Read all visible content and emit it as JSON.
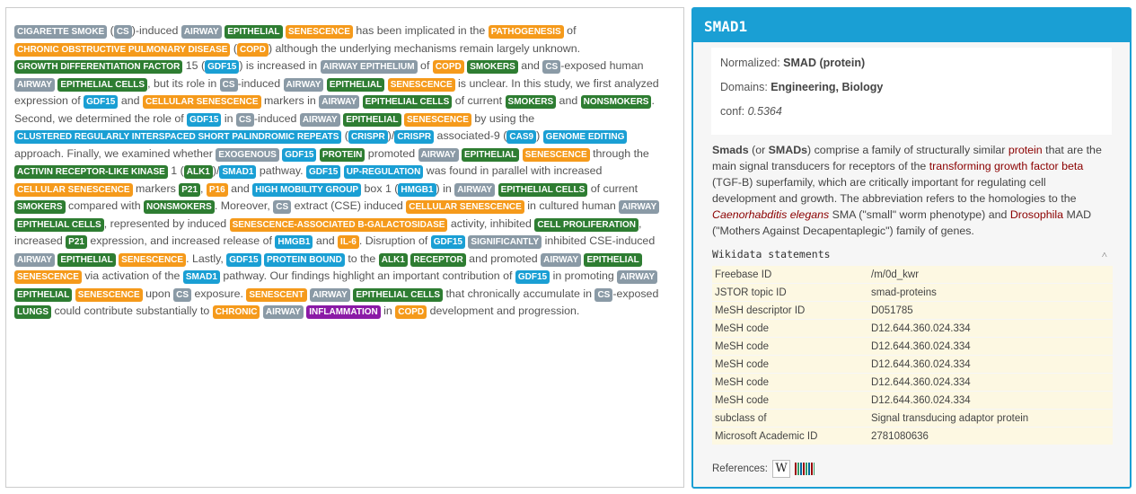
{
  "colors": {
    "grey": "#8a9aa6",
    "green": "#2e7d32",
    "orange": "#f59a1b",
    "blue": "#1a9fd4",
    "purple": "#8b1aa6"
  },
  "paragraph": [
    [
      "CIGARETTE SMOKE",
      "grey"
    ],
    [
      " (",
      null
    ],
    [
      "CS",
      "grey"
    ],
    [
      ")-induced ",
      null
    ],
    [
      "AIRWAY",
      "grey"
    ],
    [
      " ",
      null
    ],
    [
      "EPITHELIAL",
      "green"
    ],
    [
      " ",
      null
    ],
    [
      "SENESCENCE",
      "orange"
    ],
    [
      " has been implicated in the ",
      null
    ],
    [
      "PATHOGENESIS",
      "orange"
    ],
    [
      " of ",
      null
    ],
    [
      "CHRONIC OBSTRUCTIVE PULMONARY DISEASE",
      "orange"
    ],
    [
      " (",
      null
    ],
    [
      "COPD",
      "orange"
    ],
    [
      ") although the underlying mechanisms remain largely unknown. ",
      null
    ],
    [
      "GROWTH DIFFERENTIATION FACTOR",
      "green"
    ],
    [
      " 15 (",
      null
    ],
    [
      "GDF15",
      "blue"
    ],
    [
      ") is increased in ",
      null
    ],
    [
      "AIRWAY EPITHELIUM",
      "grey"
    ],
    [
      " of ",
      null
    ],
    [
      "COPD",
      "orange"
    ],
    [
      " ",
      null
    ],
    [
      "SMOKERS",
      "green"
    ],
    [
      " and ",
      null
    ],
    [
      "CS",
      "grey"
    ],
    [
      "-exposed human ",
      null
    ],
    [
      "AIRWAY",
      "grey"
    ],
    [
      " ",
      null
    ],
    [
      "EPITHELIAL CELLS",
      "green"
    ],
    [
      ", but its role in ",
      null
    ],
    [
      "CS",
      "grey"
    ],
    [
      "-induced ",
      null
    ],
    [
      "AIRWAY",
      "grey"
    ],
    [
      " ",
      null
    ],
    [
      "EPITHELIAL",
      "green"
    ],
    [
      " ",
      null
    ],
    [
      "SENESCENCE",
      "orange"
    ],
    [
      " is unclear. In this study, we first analyzed expression of ",
      null
    ],
    [
      "GDF15",
      "blue"
    ],
    [
      " and ",
      null
    ],
    [
      "CELLULAR SENESCENCE",
      "orange"
    ],
    [
      " markers in ",
      null
    ],
    [
      "AIRWAY",
      "grey"
    ],
    [
      " ",
      null
    ],
    [
      "EPITHELIAL CELLS",
      "green"
    ],
    [
      " of current ",
      null
    ],
    [
      "SMOKERS",
      "green"
    ],
    [
      " and ",
      null
    ],
    [
      "NONSMOKERS",
      "green"
    ],
    [
      ". Second, we determined the role of ",
      null
    ],
    [
      "GDF15",
      "blue"
    ],
    [
      " in ",
      null
    ],
    [
      "CS",
      "grey"
    ],
    [
      "-induced ",
      null
    ],
    [
      "AIRWAY",
      "grey"
    ],
    [
      " ",
      null
    ],
    [
      "EPITHELIAL",
      "green"
    ],
    [
      " ",
      null
    ],
    [
      "SENESCENCE",
      "orange"
    ],
    [
      " by using the ",
      null
    ],
    [
      "CLUSTERED REGULARLY INTERSPACED SHORT PALINDROMIC REPEATS",
      "blue"
    ],
    [
      " (",
      null
    ],
    [
      "CRISPR",
      "blue"
    ],
    [
      ")/",
      null
    ],
    [
      "CRISPR",
      "blue"
    ],
    [
      " associated-9 (",
      null
    ],
    [
      "CAS9",
      "blue"
    ],
    [
      ") ",
      null
    ],
    [
      "GENOME EDITING",
      "blue"
    ],
    [
      " approach. Finally, we examined whether ",
      null
    ],
    [
      "EXOGENOUS",
      "grey"
    ],
    [
      " ",
      null
    ],
    [
      "GDF15",
      "blue"
    ],
    [
      " ",
      null
    ],
    [
      "PROTEIN",
      "green"
    ],
    [
      " promoted ",
      null
    ],
    [
      "AIRWAY",
      "grey"
    ],
    [
      " ",
      null
    ],
    [
      "EPITHELIAL",
      "green"
    ],
    [
      " ",
      null
    ],
    [
      "SENESCENCE",
      "orange"
    ],
    [
      " through the ",
      null
    ],
    [
      "ACTIVIN RECEPTOR-LIKE KINASE",
      "green"
    ],
    [
      " 1 (",
      null
    ],
    [
      "ALK1",
      "green"
    ],
    [
      ")/",
      null
    ],
    [
      "SMAD1",
      "blue"
    ],
    [
      " pathway. ",
      null
    ],
    [
      "GDF15",
      "blue"
    ],
    [
      " ",
      null
    ],
    [
      "UP-REGULATION",
      "blue"
    ],
    [
      " was found in parallel with increased ",
      null
    ],
    [
      "CELLULAR SENESCENCE",
      "orange"
    ],
    [
      " markers ",
      null
    ],
    [
      "P21",
      "green"
    ],
    [
      ", ",
      null
    ],
    [
      "P16",
      "orange"
    ],
    [
      " and ",
      null
    ],
    [
      "HIGH MOBILITY GROUP",
      "blue"
    ],
    [
      " box 1 (",
      null
    ],
    [
      "HMGB1",
      "blue"
    ],
    [
      ") in ",
      null
    ],
    [
      "AIRWAY",
      "grey"
    ],
    [
      " ",
      null
    ],
    [
      "EPITHELIAL CELLS",
      "green"
    ],
    [
      " of current ",
      null
    ],
    [
      "SMOKERS",
      "green"
    ],
    [
      " compared with ",
      null
    ],
    [
      "NONSMOKERS",
      "green"
    ],
    [
      ". Moreover, ",
      null
    ],
    [
      "CS",
      "grey"
    ],
    [
      " extract (CSE) induced ",
      null
    ],
    [
      "CELLULAR SENESCENCE",
      "orange"
    ],
    [
      " in cultured human ",
      null
    ],
    [
      "AIRWAY",
      "grey"
    ],
    [
      " ",
      null
    ],
    [
      "EPITHELIAL CELLS",
      "green"
    ],
    [
      ", represented by induced ",
      null
    ],
    [
      "SENESCENCE-ASSOCIATED B-GALACTOSIDASE",
      "orange"
    ],
    [
      " activity, inhibited ",
      null
    ],
    [
      "CELL PROLIFERATION",
      "green"
    ],
    [
      ", increased ",
      null
    ],
    [
      "P21",
      "green"
    ],
    [
      " expression, and increased release of ",
      null
    ],
    [
      "HMGB1",
      "blue"
    ],
    [
      " and ",
      null
    ],
    [
      "IL-6",
      "orange"
    ],
    [
      ". Disruption of ",
      null
    ],
    [
      "GDF15",
      "blue"
    ],
    [
      " ",
      null
    ],
    [
      "SIGNIFICANTLY",
      "grey"
    ],
    [
      " inhibited CSE-induced ",
      null
    ],
    [
      "AIRWAY",
      "grey"
    ],
    [
      " ",
      null
    ],
    [
      "EPITHELIAL",
      "green"
    ],
    [
      " ",
      null
    ],
    [
      "SENESCENCE",
      "orange"
    ],
    [
      ". Lastly, ",
      null
    ],
    [
      "GDF15",
      "blue"
    ],
    [
      " ",
      null
    ],
    [
      "PROTEIN BOUND",
      "blue"
    ],
    [
      " to the ",
      null
    ],
    [
      "ALK1",
      "green"
    ],
    [
      " ",
      null
    ],
    [
      "RECEPTOR",
      "green"
    ],
    [
      " and promoted ",
      null
    ],
    [
      "AIRWAY",
      "grey"
    ],
    [
      " ",
      null
    ],
    [
      "EPITHELIAL",
      "green"
    ],
    [
      " ",
      null
    ],
    [
      "SENESCENCE",
      "orange"
    ],
    [
      " via activation of the ",
      null
    ],
    [
      "SMAD1",
      "blue"
    ],
    [
      " pathway. Our findings highlight an important contribution of ",
      null
    ],
    [
      "GDF15",
      "blue"
    ],
    [
      " in promoting ",
      null
    ],
    [
      "AIRWAY",
      "grey"
    ],
    [
      " ",
      null
    ],
    [
      "EPITHELIAL",
      "green"
    ],
    [
      " ",
      null
    ],
    [
      "SENESCENCE",
      "orange"
    ],
    [
      " upon ",
      null
    ],
    [
      "CS",
      "grey"
    ],
    [
      " exposure. ",
      null
    ],
    [
      "SENESCENT",
      "orange"
    ],
    [
      " ",
      null
    ],
    [
      "AIRWAY",
      "grey"
    ],
    [
      " ",
      null
    ],
    [
      "EPITHELIAL CELLS",
      "green"
    ],
    [
      " that chronically accumulate in ",
      null
    ],
    [
      "CS",
      "grey"
    ],
    [
      "-exposed ",
      null
    ],
    [
      "LUNGS",
      "green"
    ],
    [
      " could contribute substantially to ",
      null
    ],
    [
      "CHRONIC",
      "orange"
    ],
    [
      " ",
      null
    ],
    [
      "AIRWAY",
      "grey"
    ],
    [
      " ",
      null
    ],
    [
      "INFLAMMATION",
      "purple"
    ],
    [
      " in ",
      null
    ],
    [
      "COPD",
      "orange"
    ],
    [
      " development and progression.",
      null
    ]
  ],
  "info": {
    "title": "SMAD1",
    "normalized_label": "Normalized: ",
    "normalized_value": "SMAD (protein)",
    "domains_label": "Domains: ",
    "domains_value": "Engineering, Biology",
    "conf_label": "conf: ",
    "conf_value": "0.5364",
    "desc": [
      [
        "Smads",
        "b"
      ],
      [
        " (or ",
        null
      ],
      [
        "SMADs",
        "b"
      ],
      [
        ") comprise a family of structurally similar ",
        null
      ],
      [
        "protein",
        "lnk"
      ],
      [
        " that are the main signal transducers for receptors of the ",
        null
      ],
      [
        "transforming growth factor beta",
        "lnk"
      ],
      [
        " (TGF-B) superfamily, which are critically important for regulating cell development and growth. The abbreviation refers to the homologies to the ",
        null
      ],
      [
        "Caenorhabditis elegans",
        "lnk-i"
      ],
      [
        " SMA (\"small\" worm phenotype) and ",
        null
      ],
      [
        "Drosophila",
        "lnk"
      ],
      [
        " MAD (\"Mothers Against Decapentaplegic\") family of genes.",
        null
      ]
    ],
    "wikidata_title": "Wikidata statements",
    "wikidata": [
      [
        "Freebase ID",
        "/m/0d_kwr"
      ],
      [
        "JSTOR topic ID",
        "smad-proteins"
      ],
      [
        "MeSH descriptor ID",
        "D051785"
      ],
      [
        "MeSH code",
        "D12.644.360.024.334"
      ],
      [
        "MeSH code",
        "D12.644.360.024.334"
      ],
      [
        "MeSH code",
        "D12.644.360.024.334"
      ],
      [
        "MeSH code",
        "D12.644.360.024.334"
      ],
      [
        "MeSH code",
        "D12.644.360.024.334"
      ],
      [
        "subclass of",
        "Signal transducing adaptor protein"
      ],
      [
        "Microsoft Academic ID",
        "2781080636"
      ]
    ],
    "references_label": "References:",
    "wiki_icon_glyph": "W"
  }
}
